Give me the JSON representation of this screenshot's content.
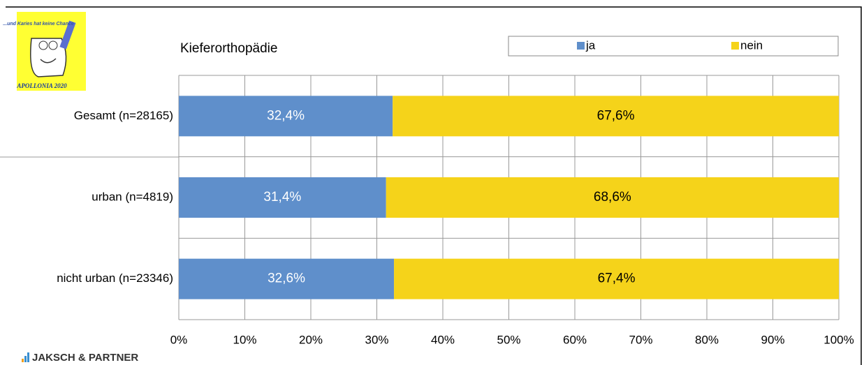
{
  "chart_data": {
    "type": "stacked_barh",
    "title": "Kieferorthopädie",
    "categories": [
      "Gesamt (n=28165)",
      "urban (n=4819)",
      "nicht urban (n=23346)"
    ],
    "series": [
      {
        "name": "ja",
        "color": "#5f8fcb",
        "values": [
          32.4,
          31.4,
          32.6
        ],
        "value_labels": [
          "32,4%",
          "31,4%",
          "32,6%"
        ]
      },
      {
        "name": "nein",
        "color": "#f5d31a",
        "values": [
          67.6,
          68.6,
          67.4
        ],
        "value_labels": [
          "67,6%",
          "68,6%",
          "67,4%"
        ]
      }
    ],
    "xlim": [
      0,
      100
    ],
    "xticks": [
      {
        "value": 0,
        "label": "0%"
      },
      {
        "value": 10,
        "label": "10%"
      },
      {
        "value": 20,
        "label": "20%"
      },
      {
        "value": 30,
        "label": "30%"
      },
      {
        "value": 40,
        "label": "40%"
      },
      {
        "value": 50,
        "label": "50%"
      },
      {
        "value": 60,
        "label": "60%"
      },
      {
        "value": 70,
        "label": "70%"
      },
      {
        "value": 80,
        "label": "80%"
      },
      {
        "value": 90,
        "label": "90%"
      },
      {
        "value": 100,
        "label": "100%"
      }
    ],
    "grid": true,
    "legend": "top-right"
  },
  "logo": {
    "slogan": "...und Karies hat keine Chance",
    "caption": "APOLLONIA 2020"
  },
  "footer": {
    "brand": "JAKSCH & PARTNER"
  }
}
